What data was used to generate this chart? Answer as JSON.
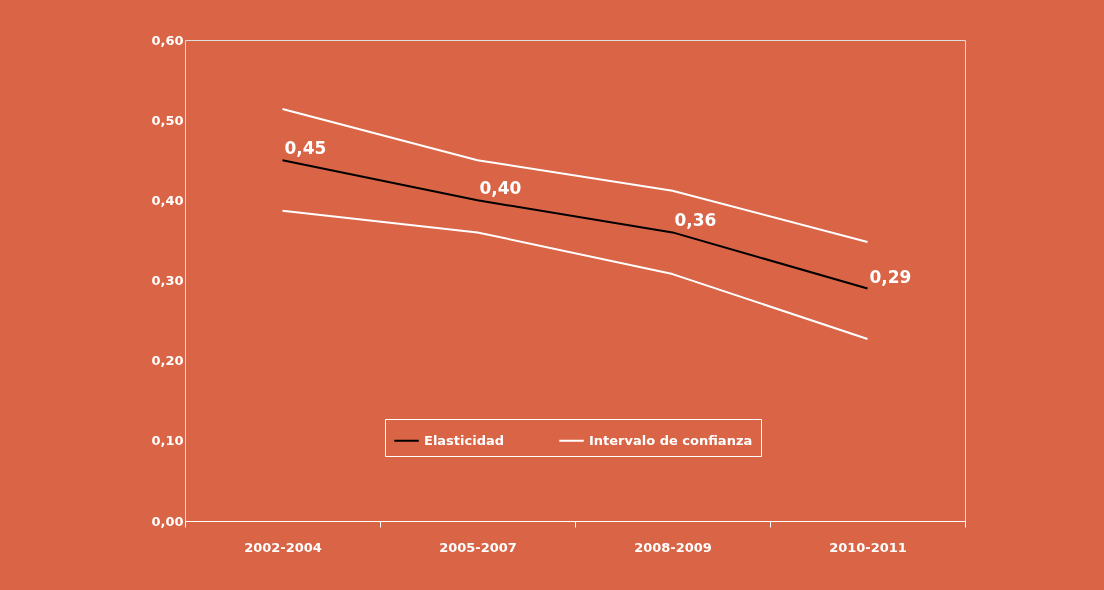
{
  "chart_data": {
    "type": "line",
    "categories": [
      "2002-2004",
      "2005-2007",
      "2008-2009",
      "2010-2011"
    ],
    "ylim": [
      0,
      0.6
    ],
    "yticks": [
      {
        "value": 0,
        "label": "0,00"
      },
      {
        "value": 0.1,
        "label": "0,10"
      },
      {
        "value": 0.2,
        "label": "0,20"
      },
      {
        "value": 0.3,
        "label": "0,30"
      },
      {
        "value": 0.4,
        "label": "0,40"
      },
      {
        "value": 0.5,
        "label": "0,50"
      },
      {
        "value": 0.6,
        "label": "0,60"
      }
    ],
    "grid": false,
    "legend": "bottom",
    "marker": "none",
    "line_style": "solid",
    "series": [
      {
        "name": "Elasticidad",
        "color": "#000000",
        "values": [
          0.45,
          0.4,
          0.36,
          0.29
        ],
        "value_labels": [
          "0,45",
          "0,40",
          "0,36",
          "0,29"
        ]
      },
      {
        "name": "Intervalo de confianza",
        "color": "#ffffff",
        "values": [
          0.514,
          0.45,
          0.412,
          0.348
        ]
      },
      {
        "color": "#ffffff",
        "values": [
          0.387,
          0.36,
          0.308,
          0.227
        ]
      }
    ]
  }
}
